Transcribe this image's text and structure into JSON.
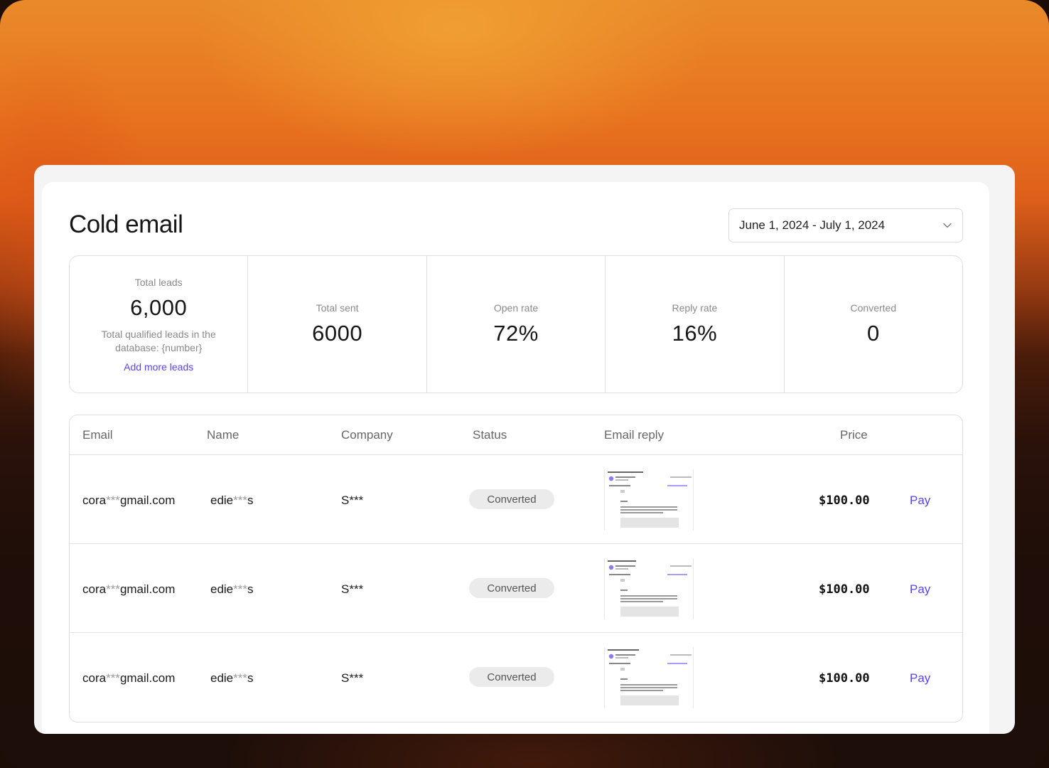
{
  "page": {
    "title": "Cold email",
    "date_range": "June 1, 2024 - July 1, 2024"
  },
  "stats": {
    "total_leads": {
      "label": "Total leads",
      "value": "6,000",
      "sub": "Total qualified leads in the database: {number}",
      "link": "Add more leads"
    },
    "total_sent": {
      "label": "Total sent",
      "value": "6000"
    },
    "open_rate": {
      "label": "Open rate",
      "value": "72%"
    },
    "reply_rate": {
      "label": "Reply rate",
      "value": "16%"
    },
    "converted": {
      "label": "Converted",
      "value": "0"
    }
  },
  "table": {
    "columns": [
      "Email",
      "Name",
      "Company",
      "Status",
      "Email reply",
      "Price"
    ],
    "rows": [
      {
        "email_prefix": "cora",
        "email_mask": "***",
        "email_suffix": "gmail.com",
        "name_prefix": "edie",
        "name_mask": "***",
        "name_suffix": "s",
        "company": "S***",
        "status": "Converted",
        "price": "$100.00",
        "action": "Pay"
      },
      {
        "email_prefix": "cora",
        "email_mask": "***",
        "email_suffix": "gmail.com",
        "name_prefix": "edie",
        "name_mask": "***",
        "name_suffix": "s",
        "company": "S***",
        "status": "Converted",
        "price": "$100.00",
        "action": "Pay"
      },
      {
        "email_prefix": "cora",
        "email_mask": "***",
        "email_suffix": "gmail.com",
        "name_prefix": "edie",
        "name_mask": "***",
        "name_suffix": "s",
        "company": "S***",
        "status": "Converted",
        "price": "$100.00",
        "action": "Pay"
      }
    ]
  },
  "icons": {
    "date_chevron": "chevron-down-icon",
    "reply_preview": "email-preview-thumbnail"
  },
  "colors": {
    "accent": "#5b43f0",
    "badge_bg": "#ebebeb",
    "bg_orange": "#e8731f",
    "bg_dark": "#1d0e09"
  }
}
